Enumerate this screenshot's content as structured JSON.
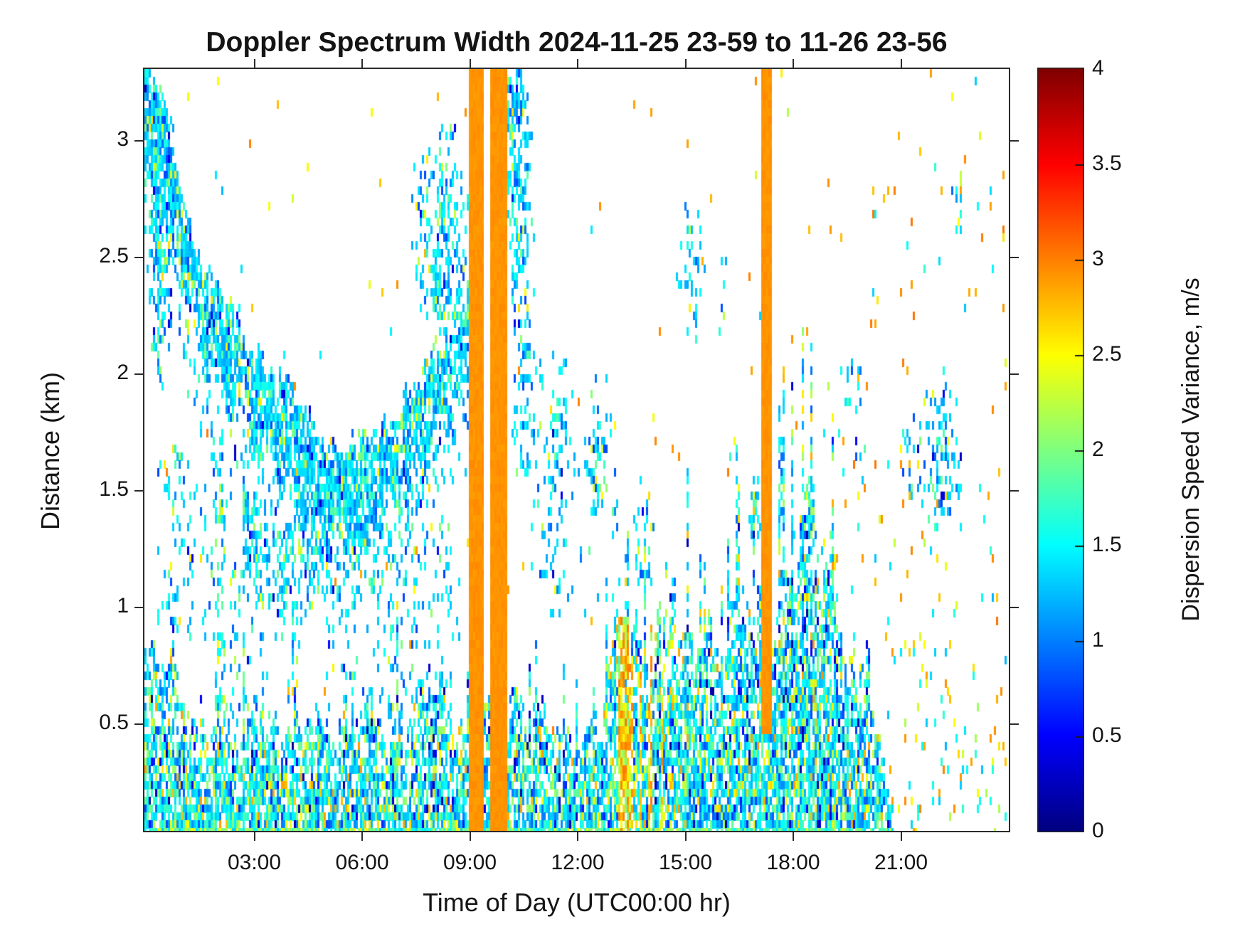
{
  "title": "Doppler Spectrum Width 2024-11-25 23-59 to 11-26 23-56",
  "axes": {
    "xlabel": "Time of Day (UTC00:00 hr)",
    "ylabel": "Distance (km)",
    "x_ticks": [
      {
        "hour": 3,
        "label": "03:00"
      },
      {
        "hour": 6,
        "label": "06:00"
      },
      {
        "hour": 9,
        "label": "09:00"
      },
      {
        "hour": 12,
        "label": "12:00"
      },
      {
        "hour": 15,
        "label": "15:00"
      },
      {
        "hour": 18,
        "label": "18:00"
      },
      {
        "hour": 21,
        "label": "21:00"
      }
    ],
    "y_ticks": [
      {
        "km": 3,
        "label": "3"
      },
      {
        "km": 2.5,
        "label": "2.5"
      },
      {
        "km": 2,
        "label": "2"
      },
      {
        "km": 1.5,
        "label": "1.5"
      },
      {
        "km": 1,
        "label": "1"
      },
      {
        "km": 0.5,
        "label": "0.5"
      }
    ]
  },
  "colorbar": {
    "label": "Dispersion Speed Variance, m/s",
    "min": 0,
    "max": 4,
    "colormap": "jet",
    "ticks": [
      {
        "value": 4,
        "label": "4"
      },
      {
        "value": 3.5,
        "label": "3.5"
      },
      {
        "value": 3,
        "label": "3"
      },
      {
        "value": 2.5,
        "label": "2.5"
      },
      {
        "value": 2,
        "label": "2"
      },
      {
        "value": 1.5,
        "label": "1.5"
      },
      {
        "value": 1,
        "label": "1"
      },
      {
        "value": 0.5,
        "label": "0.5"
      },
      {
        "value": 0,
        "label": "0"
      }
    ]
  },
  "chart_data": {
    "type": "heatmap",
    "title": "Doppler Spectrum Width 2024-11-25 23-59 to 11-26 23-56",
    "xlabel": "Time of Day (UTC00:00 hr)",
    "ylabel": "Distance (km)",
    "value_label": "Dispersion Speed Variance, m/s",
    "x_range_hours": [
      0,
      24
    ],
    "y_range_km": [
      0.04,
      3.31
    ],
    "value_range": [
      0,
      4
    ],
    "no_data_color": "#ffffff",
    "seed": 42,
    "value_mixes": {
      "cool": [
        [
          0.5,
          1.25,
          1.6
        ],
        [
          0.2,
          1.05,
          1.3
        ],
        [
          0.12,
          0.75,
          1.05
        ],
        [
          0.1,
          1.65,
          2.1
        ],
        [
          0.05,
          2.2,
          2.65
        ],
        [
          0.03,
          0.25,
          0.6
        ]
      ],
      "low": [
        [
          0.4,
          1.2,
          1.6
        ],
        [
          0.18,
          1.6,
          2.0
        ],
        [
          0.14,
          0.85,
          1.2
        ],
        [
          0.12,
          2.0,
          2.5
        ],
        [
          0.07,
          2.5,
          2.9
        ],
        [
          0.05,
          0.45,
          0.85
        ],
        [
          0.04,
          0.1,
          0.4
        ]
      ],
      "green": [
        [
          0.4,
          1.5,
          1.9
        ],
        [
          0.3,
          1.2,
          1.5
        ],
        [
          0.15,
          2.0,
          2.5
        ],
        [
          0.15,
          0.9,
          1.2
        ]
      ],
      "warm": [
        [
          0.55,
          2.7,
          3.05
        ],
        [
          0.25,
          2.3,
          2.7
        ],
        [
          0.2,
          1.9,
          2.4
        ]
      ],
      "spark": [
        [
          0.55,
          2.7,
          3.05
        ],
        [
          0.2,
          2.2,
          2.6
        ],
        [
          0.25,
          1.2,
          1.7
        ]
      ],
      "sparkmix": [
        [
          0.35,
          2.6,
          3.0
        ],
        [
          0.25,
          2.1,
          2.6
        ],
        [
          0.4,
          1.2,
          1.7
        ]
      ],
      "base": [
        [
          0.5,
          1.7,
          2.2
        ],
        [
          0.3,
          1.3,
          1.7
        ],
        [
          0.2,
          2.2,
          2.6
        ]
      ]
    },
    "features": [
      {
        "name": "background-speckle",
        "type": "speckle",
        "t": [
          -0.05,
          24
        ],
        "h": [
          0.05,
          3.3
        ],
        "density": 0.005,
        "mix": "spark"
      },
      {
        "name": "early-high-plume",
        "type": "blob",
        "t": [
          -0.05,
          0.55
        ],
        "h": [
          2.85,
          3.32
        ],
        "density": 0.7,
        "mix": "cool"
      },
      {
        "name": "early-high-column",
        "type": "blob",
        "t": [
          -0.05,
          0.85
        ],
        "h": [
          1.95,
          3.3
        ],
        "density": 0.5,
        "mix": "cool"
      },
      {
        "name": "descending-cloud-layer",
        "type": "band",
        "points": [
          [
            -0.05,
            3.22
          ],
          [
            0.35,
            2.95
          ],
          [
            0.8,
            2.7
          ],
          [
            1.3,
            2.42
          ],
          [
            1.9,
            2.18
          ],
          [
            2.6,
            2.02
          ],
          [
            3.3,
            1.88
          ],
          [
            4.1,
            1.7
          ],
          [
            4.9,
            1.56
          ],
          [
            5.5,
            1.47
          ],
          [
            6.1,
            1.52
          ],
          [
            6.7,
            1.62
          ],
          [
            7.3,
            1.7
          ],
          [
            7.9,
            1.86
          ],
          [
            8.4,
            2.02
          ],
          [
            9.0,
            2.22
          ]
        ],
        "thick": 0.42,
        "density": 0.82,
        "mix": "cool",
        "tail": 0.5,
        "tail_density": 0.22
      },
      {
        "name": "secondary-low-band",
        "type": "band",
        "points": [
          [
            2.7,
            1.38
          ],
          [
            3.3,
            1.26
          ],
          [
            3.9,
            1.18
          ],
          [
            4.5,
            1.26
          ],
          [
            5.1,
            1.36
          ]
        ],
        "thick": 0.34,
        "density": 0.5,
        "mix": "cool",
        "tail": 0.25,
        "tail_density": 0.15
      },
      {
        "name": "early-midlevel-speckle",
        "type": "speckle",
        "t": [
          0.3,
          1.9
        ],
        "h": [
          0.85,
          1.7
        ],
        "density": 0.13,
        "mix": "cool"
      },
      {
        "name": "vertical-streak-0200",
        "type": "blob",
        "t": [
          1.88,
          2.2
        ],
        "h": [
          0.1,
          1.95
        ],
        "density": 0.55,
        "mix": "green"
      },
      {
        "name": "below-layer-speckle-0230",
        "type": "speckle",
        "t": [
          2.3,
          3.4
        ],
        "h": [
          0.5,
          1.2
        ],
        "density": 0.12,
        "mix": "cool"
      },
      {
        "name": "midgap-speckle",
        "type": "speckle",
        "t": [
          5.0,
          8.7
        ],
        "h": [
          0.6,
          1.35
        ],
        "density": 0.1,
        "mix": "cool"
      },
      {
        "name": "elevated-cluster-0800",
        "type": "blob",
        "t": [
          7.35,
          9.0
        ],
        "h": [
          2.15,
          3.08
        ],
        "density": 0.55,
        "mix": "cool"
      },
      {
        "name": "tall-plume-1000",
        "type": "blob",
        "t": [
          9.92,
          10.8
        ],
        "h": [
          2.15,
          3.32
        ],
        "density": 0.6,
        "mix": "cool"
      },
      {
        "name": "plume-top-dense",
        "type": "blob",
        "t": [
          9.98,
          10.55
        ],
        "h": [
          3.0,
          3.32
        ],
        "density": 0.85,
        "mix": "cool"
      },
      {
        "name": "plume-lower-extension",
        "type": "blob",
        "t": [
          10.15,
          10.8
        ],
        "h": [
          1.5,
          2.3
        ],
        "density": 0.38,
        "mix": "cool"
      },
      {
        "name": "plume-fringe-speckle",
        "type": "speckle",
        "t": [
          10.7,
          11.7
        ],
        "h": [
          0.95,
          2.1
        ],
        "density": 0.1,
        "mix": "cool"
      },
      {
        "name": "midday-speckle",
        "type": "speckle",
        "t": [
          11.0,
          13.1
        ],
        "h": [
          1.05,
          2.05
        ],
        "density": 0.05,
        "mix": "cool"
      },
      {
        "name": "patch-1120",
        "type": "blob",
        "t": [
          11.1,
          11.6
        ],
        "h": [
          1.45,
          1.92
        ],
        "density": 0.28,
        "mix": "cool"
      },
      {
        "name": "patch-1230",
        "type": "blob",
        "t": [
          12.15,
          12.98
        ],
        "h": [
          1.4,
          1.97
        ],
        "density": 0.32,
        "mix": "cool"
      },
      {
        "name": "patch-1345",
        "type": "blob",
        "t": [
          13.5,
          14.2
        ],
        "h": [
          1.0,
          1.62
        ],
        "density": 0.26,
        "mix": "cool"
      },
      {
        "name": "patch-1510",
        "type": "blob",
        "t": [
          14.75,
          15.6
        ],
        "h": [
          2.05,
          2.78
        ],
        "density": 0.22,
        "mix": "cool"
      },
      {
        "name": "patch-1600",
        "type": "blob",
        "t": [
          15.9,
          16.3
        ],
        "h": [
          2.15,
          2.62
        ],
        "density": 0.16,
        "mix": "cool"
      },
      {
        "name": "patch-1640-low",
        "type": "blob",
        "t": [
          16.5,
          16.85
        ],
        "h": [
          0.55,
          1.02
        ],
        "density": 0.4,
        "mix": "cool"
      },
      {
        "name": "patch-1655-mid",
        "type": "blob",
        "t": [
          16.72,
          17.1
        ],
        "h": [
          1.25,
          1.6
        ],
        "density": 0.5,
        "mix": "cool"
      },
      {
        "name": "boundary-layer",
        "type": "lowlayer",
        "t": [
          -0.06,
          20.75
        ],
        "top_points": [
          [
            -0.06,
            0.85
          ],
          [
            0.4,
            0.8
          ],
          [
            0.8,
            0.66
          ],
          [
            1.2,
            0.52
          ],
          [
            1.6,
            0.48
          ],
          [
            2.0,
            0.56
          ],
          [
            2.4,
            0.46
          ],
          [
            2.8,
            0.5
          ],
          [
            3.2,
            0.48
          ],
          [
            3.6,
            0.5
          ],
          [
            4.0,
            0.52
          ],
          [
            4.4,
            0.56
          ],
          [
            4.8,
            0.5
          ],
          [
            5.2,
            0.55
          ],
          [
            5.6,
            0.5
          ],
          [
            6.0,
            0.55
          ],
          [
            6.4,
            0.52
          ],
          [
            6.8,
            0.56
          ],
          [
            7.2,
            0.53
          ],
          [
            7.6,
            0.58
          ],
          [
            8.0,
            0.62
          ],
          [
            8.4,
            0.56
          ],
          [
            8.8,
            0.5
          ],
          [
            9.2,
            0.52
          ],
          [
            9.6,
            0.56
          ],
          [
            10.0,
            0.58
          ],
          [
            10.4,
            0.62
          ],
          [
            10.8,
            0.56
          ],
          [
            11.2,
            0.5
          ],
          [
            11.6,
            0.46
          ],
          [
            12.0,
            0.44
          ],
          [
            12.4,
            0.52
          ],
          [
            12.8,
            0.64
          ],
          [
            13.1,
            0.82
          ],
          [
            13.4,
            0.92
          ],
          [
            13.7,
            0.8
          ],
          [
            14.0,
            0.86
          ],
          [
            14.3,
            0.96
          ],
          [
            14.6,
            0.86
          ],
          [
            15.0,
            0.78
          ],
          [
            15.4,
            0.9
          ],
          [
            15.8,
            0.84
          ],
          [
            16.2,
            0.94
          ],
          [
            16.6,
            0.9
          ],
          [
            17.0,
            0.92
          ],
          [
            17.4,
            1.02
          ],
          [
            17.8,
            1.18
          ],
          [
            18.2,
            1.32
          ],
          [
            18.6,
            1.3
          ],
          [
            19.0,
            1.18
          ],
          [
            19.4,
            0.96
          ],
          [
            19.8,
            0.75
          ],
          [
            20.2,
            0.55
          ],
          [
            20.5,
            0.32
          ],
          [
            20.75,
            0.12
          ]
        ],
        "density": 0.8,
        "spike_prob": 0.12,
        "warm": [
          13.0,
          14.6
        ],
        "mix": "low"
      },
      {
        "name": "orange-column-1315",
        "type": "column",
        "t": [
          13.14,
          13.36
        ],
        "h": [
          0.02,
          0.95
        ],
        "density": 0.75,
        "mix": "warm"
      },
      {
        "name": "patch-1930-mid",
        "type": "blob",
        "t": [
          19.2,
          20.1
        ],
        "h": [
          1.55,
          2.1
        ],
        "density": 0.12,
        "mix": "cool"
      },
      {
        "name": "patch-2115",
        "type": "blob",
        "t": [
          21.0,
          21.7
        ],
        "h": [
          1.35,
          1.85
        ],
        "density": 0.36,
        "mix": "cool"
      },
      {
        "name": "patch-2200",
        "type": "blob",
        "t": [
          21.55,
          22.7
        ],
        "h": [
          1.28,
          2.02
        ],
        "density": 0.4,
        "mix": "cool"
      },
      {
        "name": "patch-2230-high",
        "type": "blob",
        "t": [
          22.4,
          22.8
        ],
        "h": [
          2.55,
          2.88
        ],
        "density": 0.2,
        "mix": "cool"
      },
      {
        "name": "late-low-speckle",
        "type": "speckle",
        "t": [
          20.6,
          23.9
        ],
        "h": [
          0.03,
          0.85
        ],
        "density": 0.06,
        "mix": "sparkmix"
      },
      {
        "name": "late-upper-speckle",
        "type": "speckle",
        "t": [
          18.8,
          23.85
        ],
        "h": [
          0.9,
          3.25
        ],
        "density": 0.012,
        "mix": "spark"
      },
      {
        "name": "interference-stripe-0900",
        "type": "stripe",
        "t": [
          8.99,
          9.07
        ],
        "h": [
          0.02,
          3.32
        ],
        "value": 2.92
      },
      {
        "name": "interference-stripe-0912",
        "type": "stripe",
        "t": [
          9.12,
          9.3
        ],
        "h": [
          0.02,
          3.32
        ],
        "value": 2.92
      },
      {
        "name": "interference-stripe-0935",
        "type": "stripe",
        "t": [
          9.55,
          9.97
        ],
        "h": [
          0.02,
          3.32
        ],
        "value": 2.92
      },
      {
        "name": "interference-stripe-1707",
        "type": "stripe",
        "t": [
          17.1,
          17.37
        ],
        "h": [
          0.5,
          3.32
        ],
        "value": 2.92
      }
    ]
  }
}
